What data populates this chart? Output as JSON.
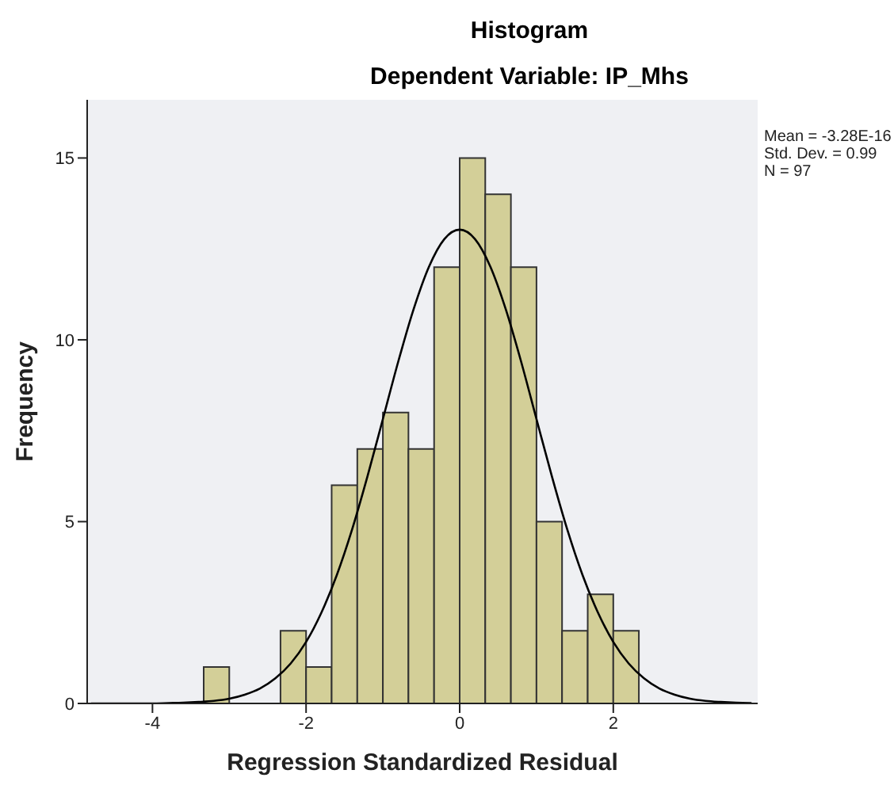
{
  "chart_data": {
    "type": "histogram",
    "title": "Histogram",
    "subtitle": "Dependent Variable: IP_Mhs",
    "xlabel": "Regression Standardized Residual",
    "ylabel": "Frequency",
    "annotations": [
      "Mean = -3.28E-16",
      "Std. Dev. = 0.99",
      "N = 97"
    ],
    "bins": [
      -3.333,
      -3,
      -2.667,
      -2.333,
      -2,
      -1.667,
      -1.333,
      -1,
      -0.667,
      -0.333,
      0,
      0.333,
      0.667,
      1,
      1.333,
      1.667,
      2,
      2.333
    ],
    "values": [
      1,
      0,
      0,
      2,
      1,
      6,
      7,
      8,
      7,
      12,
      15,
      14,
      12,
      5,
      2,
      3,
      2
    ],
    "color": "#d3cf98",
    "series": [
      {
        "type": "line",
        "color": "#000000",
        "x": [
          -4.8,
          -4.6,
          -4.4,
          -4.2,
          -4,
          -3.8,
          -3.6,
          -3.4,
          -3.2,
          -3,
          -2.8,
          -2.6,
          -2.4,
          -2.2,
          -2,
          -1.8,
          -1.6,
          -1.4,
          -1.2,
          -1,
          -0.8,
          -0.6,
          -0.4,
          -0.2,
          0,
          0.2,
          0.4,
          0.6,
          0.8,
          1,
          1.2,
          1.4,
          1.6,
          1.8,
          2,
          2.2,
          2.4,
          2.6,
          2.8,
          3,
          3.2,
          3.4,
          3.6,
          3.8
        ],
        "values": [
          0,
          0,
          0,
          0,
          0,
          0.01,
          0.02,
          0.04,
          0.07,
          0.13,
          0.24,
          0.41,
          0.69,
          1.1,
          1.69,
          2.5,
          3.53,
          4.79,
          6.25,
          7.82,
          9.4,
          10.84,
          12.01,
          12.77,
          13.03,
          12.77,
          12.01,
          10.84,
          9.4,
          7.82,
          6.25,
          4.79,
          3.53,
          2.5,
          1.69,
          1.1,
          0.69,
          0.41,
          0.24,
          0.13,
          0.07,
          0.04,
          0.02,
          0.01
        ]
      }
    ],
    "xlim": [
      -4.85,
      3.88
    ],
    "xticks": [
      -4,
      -2,
      0,
      2
    ],
    "ylim": [
      0,
      16.6
    ],
    "yticks": [
      0,
      5,
      10,
      15
    ],
    "grid": false
  }
}
